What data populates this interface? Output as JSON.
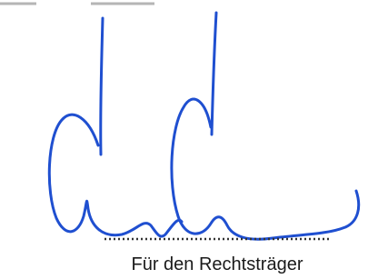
{
  "document": {
    "signature_caption": "Für den Rechtsträger"
  }
}
